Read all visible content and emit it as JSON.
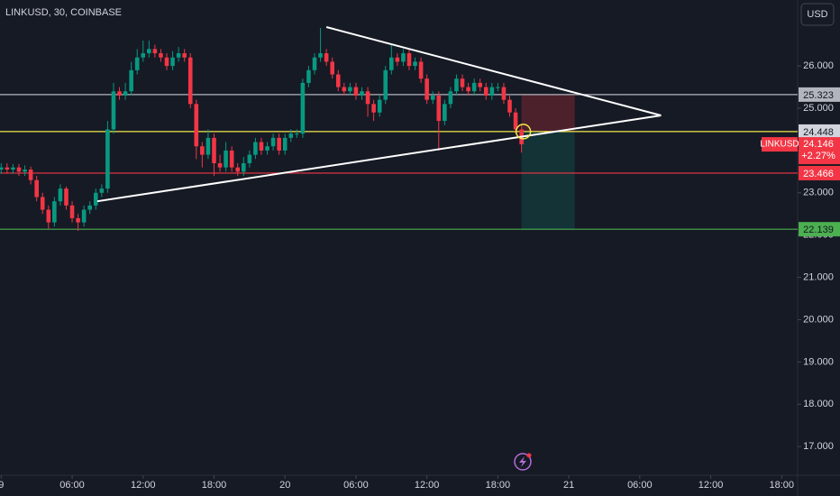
{
  "header": {
    "symbol_title": "LINKUSD, 30, COINBASE",
    "currency": "USD"
  },
  "chart_data": {
    "type": "candlestick",
    "x": [
      0,
      0.5,
      1,
      1.5,
      2,
      2.5,
      3,
      3.5,
      4,
      4.5,
      5,
      5.5,
      6,
      6.5,
      7,
      7.5,
      8,
      8.5,
      9,
      9.5,
      10,
      10.5,
      11,
      11.5,
      12,
      12.5,
      13,
      13.5,
      14,
      14.5,
      15,
      15.5,
      16,
      16.5,
      17,
      17.5,
      18,
      18.5,
      19,
      19.5,
      20,
      20.5,
      21,
      21.5,
      22,
      22.5,
      23,
      23.5,
      24,
      24.5,
      25,
      25.5,
      26,
      26.5,
      27,
      27.5,
      28,
      28.5,
      29,
      29.5,
      30,
      30.5,
      31,
      31.5,
      32,
      32.5,
      33,
      33.5,
      34,
      34.5,
      35,
      35.5,
      36,
      36.5,
      37,
      37.5,
      38,
      38.5,
      39,
      39.5,
      40,
      40.5,
      41,
      41.5,
      42,
      42.5,
      43,
      43.5,
      44
    ],
    "open": [
      23.55,
      23.6,
      23.55,
      23.6,
      23.5,
      23.55,
      23.3,
      22.9,
      22.6,
      22.3,
      22.8,
      23.1,
      22.7,
      22.4,
      22.3,
      22.6,
      22.7,
      23.0,
      23.1,
      24.5,
      25.4,
      25.3,
      25.4,
      25.9,
      26.2,
      26.3,
      26.4,
      26.3,
      26.2,
      26.0,
      26.2,
      26.3,
      26.2,
      25.1,
      24.1,
      23.9,
      24.3,
      23.7,
      23.6,
      24.0,
      23.6,
      23.5,
      23.7,
      23.9,
      24.2,
      24.0,
      24.1,
      24.3,
      24.0,
      24.3,
      24.4,
      24.4,
      25.6,
      25.9,
      26.2,
      26.3,
      26.1,
      25.8,
      25.5,
      25.4,
      25.5,
      25.3,
      25.4,
      25.1,
      24.9,
      25.2,
      25.9,
      26.2,
      26.1,
      26.3,
      26.0,
      26.1,
      25.7,
      25.2,
      25.3,
      24.7,
      25.1,
      25.4,
      25.7,
      25.5,
      25.4,
      25.6,
      25.5,
      25.3,
      25.5,
      25.5,
      25.2,
      24.9,
      24.5
    ],
    "high": [
      23.7,
      23.7,
      23.68,
      23.68,
      23.65,
      23.62,
      23.4,
      23.0,
      22.7,
      22.9,
      23.2,
      23.15,
      22.8,
      22.5,
      22.7,
      22.8,
      23.1,
      23.2,
      24.7,
      25.6,
      25.5,
      25.6,
      26.1,
      26.4,
      26.6,
      26.6,
      26.5,
      26.4,
      26.3,
      26.35,
      26.45,
      26.4,
      26.3,
      25.2,
      24.2,
      24.5,
      24.4,
      23.9,
      24.2,
      24.1,
      23.7,
      23.85,
      24.0,
      24.3,
      24.3,
      24.2,
      24.4,
      24.4,
      24.4,
      24.5,
      24.5,
      25.7,
      26.0,
      26.3,
      26.9,
      26.4,
      26.2,
      25.9,
      25.6,
      25.6,
      25.6,
      25.5,
      25.5,
      25.2,
      25.3,
      26.0,
      26.5,
      26.3,
      26.4,
      26.4,
      26.2,
      26.2,
      25.8,
      25.4,
      25.4,
      25.2,
      25.5,
      25.8,
      25.8,
      25.6,
      25.7,
      25.7,
      25.6,
      25.6,
      25.6,
      25.6,
      25.3,
      25.0,
      24.6
    ],
    "low": [
      23.45,
      23.45,
      23.45,
      23.4,
      23.4,
      23.2,
      22.8,
      22.5,
      22.15,
      22.2,
      22.7,
      22.6,
      22.3,
      22.1,
      22.2,
      22.5,
      22.6,
      22.9,
      23.0,
      24.4,
      25.2,
      25.2,
      25.3,
      25.8,
      26.1,
      26.2,
      26.2,
      26.1,
      25.9,
      25.9,
      26.1,
      26.1,
      25.0,
      23.8,
      23.6,
      23.8,
      23.4,
      23.5,
      23.5,
      23.5,
      23.4,
      23.4,
      23.6,
      23.8,
      23.9,
      23.9,
      24.0,
      23.9,
      23.9,
      24.2,
      24.3,
      24.3,
      25.5,
      25.8,
      26.1,
      26.0,
      25.7,
      25.4,
      25.3,
      25.3,
      25.2,
      25.2,
      24.8,
      24.7,
      24.8,
      25.1,
      25.8,
      26.0,
      26.0,
      25.9,
      25.9,
      25.6,
      25.1,
      25.1,
      24.0,
      24.6,
      25.0,
      25.3,
      25.4,
      25.3,
      25.3,
      25.4,
      25.2,
      25.2,
      25.4,
      25.1,
      24.8,
      24.4,
      23.95
    ],
    "close": [
      23.6,
      23.55,
      23.6,
      23.5,
      23.55,
      23.3,
      22.9,
      22.6,
      22.3,
      22.8,
      23.1,
      22.7,
      22.4,
      22.3,
      22.6,
      22.7,
      23.0,
      23.1,
      24.5,
      25.4,
      25.3,
      25.4,
      25.9,
      26.2,
      26.3,
      26.4,
      26.3,
      26.2,
      26.0,
      26.2,
      26.3,
      26.2,
      25.1,
      24.1,
      23.9,
      24.3,
      23.7,
      23.6,
      24.0,
      23.6,
      23.5,
      23.7,
      23.9,
      24.2,
      24.0,
      24.1,
      24.3,
      24.0,
      24.3,
      24.4,
      24.4,
      25.6,
      25.9,
      26.2,
      26.3,
      26.1,
      25.8,
      25.5,
      25.4,
      25.5,
      25.3,
      25.4,
      25.1,
      24.9,
      25.2,
      25.9,
      26.2,
      26.1,
      26.3,
      26.0,
      26.1,
      25.7,
      25.2,
      25.3,
      24.7,
      25.1,
      25.4,
      25.7,
      25.5,
      25.4,
      25.6,
      25.5,
      25.3,
      25.5,
      25.5,
      25.2,
      24.9,
      24.5,
      24.146
    ],
    "up_color": "#089981",
    "down_color": "#f23645",
    "xlim": [
      -0.1,
      67.35
    ],
    "xticks": [
      {
        "value": 0,
        "label": "9"
      },
      {
        "value": 6,
        "label": "06:00"
      },
      {
        "value": 12,
        "label": "12:00"
      },
      {
        "value": 18,
        "label": "18:00"
      },
      {
        "value": 24,
        "label": "20"
      },
      {
        "value": 30,
        "label": "06:00"
      },
      {
        "value": 36,
        "label": "12:00"
      },
      {
        "value": 42,
        "label": "18:00"
      },
      {
        "value": 48,
        "label": "21"
      },
      {
        "value": 54,
        "label": "06:00"
      },
      {
        "value": 60,
        "label": "12:00"
      },
      {
        "value": 66,
        "label": "18:00"
      }
    ],
    "ylim": [
      16.32,
      27.56
    ],
    "yticks": [
      {
        "value": 17,
        "label": "17.000"
      },
      {
        "value": 18,
        "label": "18.000"
      },
      {
        "value": 19,
        "label": "19.000"
      },
      {
        "value": 20,
        "label": "20.000"
      },
      {
        "value": 21,
        "label": "21.000"
      },
      {
        "value": 22,
        "label": "22.000"
      },
      {
        "value": 23,
        "label": "23.000"
      },
      {
        "value": 24,
        "label": "24.000"
      },
      {
        "value": 25,
        "label": "25.000"
      },
      {
        "value": 26,
        "label": "26.000"
      }
    ],
    "grid": false,
    "price_lines": [
      {
        "value": 25.323,
        "color": "#b2b5be"
      },
      {
        "value": 24.448,
        "color": "#f5e94a"
      },
      {
        "value": 23.466,
        "color": "#f23645"
      },
      {
        "value": 22.139,
        "color": "#4caf50"
      }
    ],
    "last_price": {
      "symbol": "LINKUSD",
      "change": "+2.27%"
    },
    "trendlines": [
      {
        "x": [
          27.5,
          55.8
        ],
        "y": [
          26.92,
          24.83
        ]
      },
      {
        "x": [
          8.13,
          55.8
        ],
        "y": [
          22.8,
          24.83
        ]
      }
    ],
    "position": {
      "x": [
        44,
        48.5
      ]
    }
  }
}
